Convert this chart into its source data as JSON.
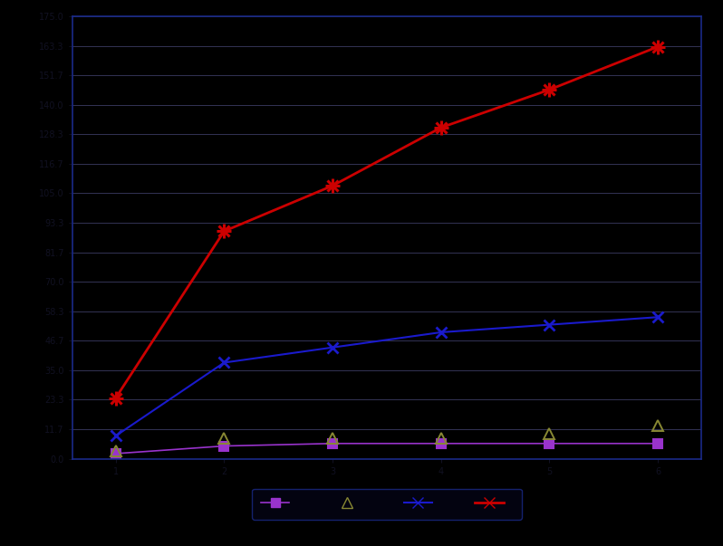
{
  "x": [
    1,
    2,
    3,
    4,
    5,
    6
  ],
  "series": {
    "purple": {
      "values": [
        2,
        5,
        6,
        6,
        6,
        6
      ],
      "color": "#9933cc",
      "marker": "s",
      "linewidth": 1.2,
      "markersize": 7,
      "markerfacecolor": "#9933cc"
    },
    "olive": {
      "values": [
        3,
        8,
        8,
        8,
        10,
        13
      ],
      "color": "#888833",
      "marker": "^",
      "linewidth": 0,
      "markersize": 8,
      "markerfacecolor": "none"
    },
    "blue": {
      "values": [
        9,
        38,
        44,
        50,
        53,
        56
      ],
      "color": "#1a1acc",
      "marker": "x",
      "linewidth": 1.5,
      "markersize": 8,
      "markerfacecolor": "#1a1acc"
    },
    "red": {
      "values": [
        24,
        90,
        108,
        131,
        146,
        163
      ],
      "color": "#cc0000",
      "marker": "x",
      "linewidth": 2.0,
      "markersize": 9,
      "markerfacecolor": "#cc0000"
    }
  },
  "ylim": [
    0,
    175
  ],
  "xlim": [
    0.6,
    6.4
  ],
  "xticks": [
    1,
    2,
    3,
    4,
    5,
    6
  ],
  "ytick_count": 16,
  "background_color": "#000000",
  "plot_bg_color": "#000000",
  "grid_color": "#333355",
  "tick_color": "#111122",
  "spine_color": "#1a2a88",
  "legend_bg": "#050515",
  "legend_edge": "#1a2a88"
}
